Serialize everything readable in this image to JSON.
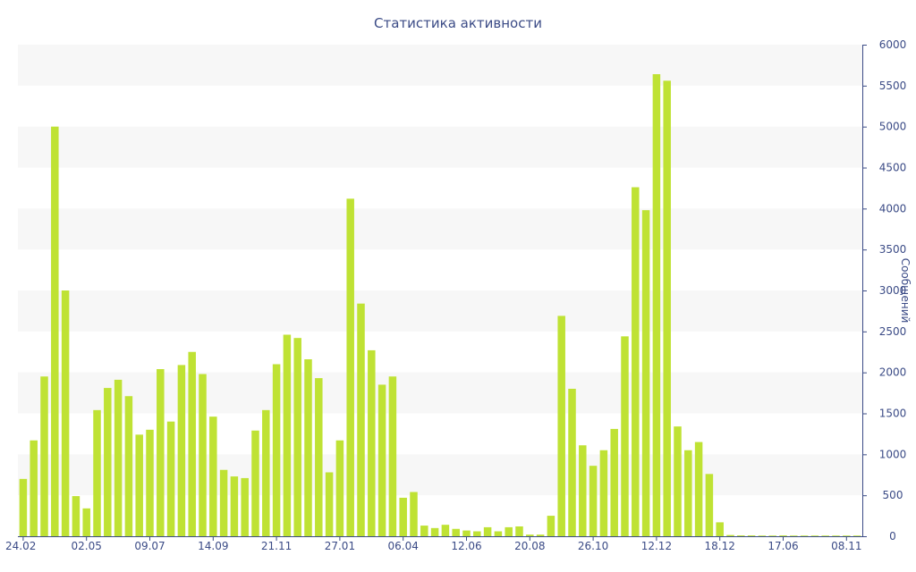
{
  "chart_data": {
    "type": "bar",
    "title": "Статистика активности",
    "xlabel": "",
    "ylabel": "Сообщений",
    "ylim": [
      0,
      6000
    ],
    "y_ticks": [
      0,
      500,
      1000,
      1500,
      2000,
      2500,
      3000,
      3500,
      4000,
      4500,
      5000,
      5500,
      6000
    ],
    "x_tick_labels": [
      {
        "index": 0,
        "label": "24.02"
      },
      {
        "index": 6,
        "label": "02.05"
      },
      {
        "index": 12,
        "label": "09.07"
      },
      {
        "index": 18,
        "label": "14.09"
      },
      {
        "index": 24,
        "label": "21.11"
      },
      {
        "index": 30,
        "label": "27.01"
      },
      {
        "index": 36,
        "label": "06.04"
      },
      {
        "index": 42,
        "label": "12.06"
      },
      {
        "index": 48,
        "label": "20.08"
      },
      {
        "index": 54,
        "label": "26.10"
      },
      {
        "index": 60,
        "label": "12.12"
      },
      {
        "index": 66,
        "label": "18.12"
      },
      {
        "index": 72,
        "label": "17.06"
      },
      {
        "index": 78,
        "label": "08.11"
      }
    ],
    "values": [
      700,
      1170,
      1950,
      5000,
      3000,
      490,
      340,
      1540,
      1810,
      1910,
      1710,
      1240,
      1300,
      2040,
      1400,
      2090,
      2250,
      1980,
      1460,
      810,
      730,
      710,
      1290,
      1540,
      2100,
      2460,
      2420,
      2160,
      1930,
      780,
      1170,
      4120,
      2840,
      2270,
      1850,
      1950,
      470,
      540,
      130,
      100,
      140,
      90,
      70,
      60,
      110,
      60,
      110,
      120,
      20,
      20,
      250,
      2690,
      1800,
      1110,
      860,
      1050,
      1310,
      2440,
      4260,
      3980,
      5640,
      5560,
      1340,
      1050,
      1150,
      760,
      170,
      15,
      10,
      10,
      8,
      8,
      10,
      8,
      8,
      8,
      8,
      8,
      8,
      8
    ],
    "grid": "horizontal-bands",
    "colors": {
      "bar": "#bfe234",
      "text": "#3b4b86",
      "band": "#f7f7f7"
    }
  }
}
